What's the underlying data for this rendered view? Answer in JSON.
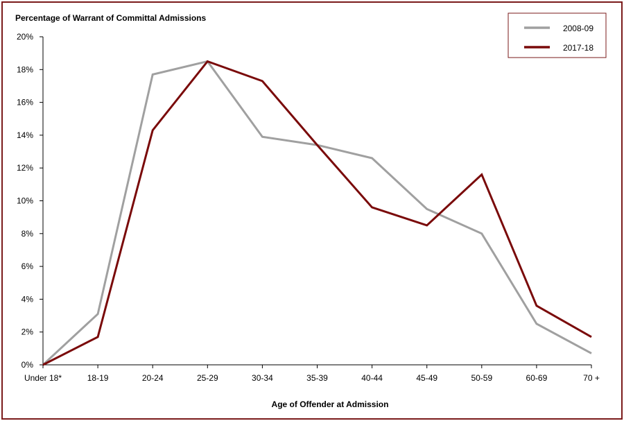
{
  "chart_data": {
    "type": "line",
    "title": "",
    "ylabel": "Percentage of Warrant of Committal Admissions",
    "xlabel": "Age of Offender at Admission",
    "categories": [
      "Under 18*",
      "18-19",
      "20-24",
      "25-29",
      "30-34",
      "35-39",
      "40-44",
      "45-49",
      "50-59",
      "60-69",
      "70 +"
    ],
    "ylim": [
      0,
      20
    ],
    "yticks": [
      0,
      2,
      4,
      6,
      8,
      10,
      12,
      14,
      16,
      18,
      20
    ],
    "ytick_format": "%",
    "grid": false,
    "legend_position": "top-right",
    "series": [
      {
        "name": "2008-09",
        "color": "#a0a0a0",
        "values": [
          0,
          3.1,
          17.7,
          18.5,
          13.9,
          13.4,
          12.6,
          9.5,
          8.0,
          2.5,
          0.7
        ]
      },
      {
        "name": "2017-18",
        "color": "#7a0a0a",
        "values": [
          0,
          1.7,
          14.3,
          18.5,
          17.3,
          13.4,
          9.6,
          8.5,
          11.6,
          3.6,
          1.7
        ]
      }
    ]
  },
  "colors": {
    "frame": "#7a1a1a"
  }
}
